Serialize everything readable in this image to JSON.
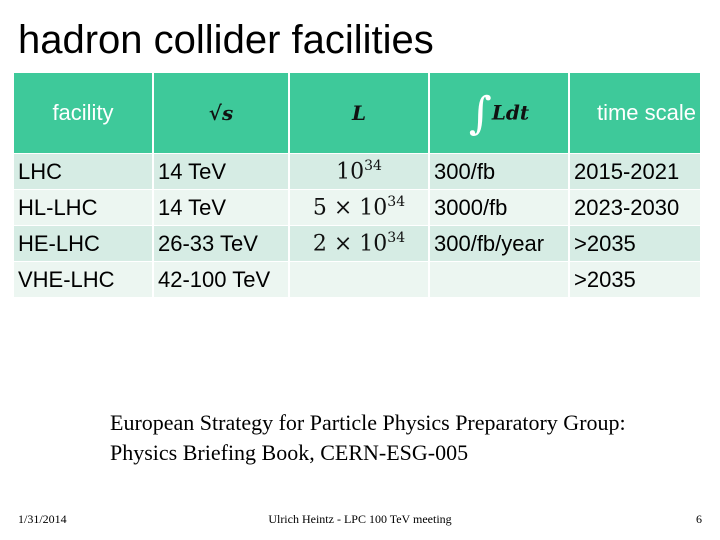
{
  "slide": {
    "title": "hadron collider facilities",
    "headers": {
      "facility": "facility",
      "sqrt_s": "√s",
      "luminosity": "L",
      "integrated_luminosity": "Ldt",
      "integral_sign": "∫",
      "time_scale": "time scale"
    },
    "rows": [
      {
        "facility": "LHC",
        "energy": "14 TeV",
        "lum_coeff": "",
        "lum_base": "10",
        "lum_exp": "34",
        "int_lum": "300/fb",
        "time": "2015-2021"
      },
      {
        "facility": "HL-LHC",
        "energy": "14 TeV",
        "lum_coeff": "5 × ",
        "lum_base": "10",
        "lum_exp": "34",
        "int_lum": "3000/fb",
        "time": "2023-2030"
      },
      {
        "facility": "HE-LHC",
        "energy": "26-33 TeV",
        "lum_coeff": "2 × ",
        "lum_base": "10",
        "lum_exp": "34",
        "int_lum": "300/fb/year",
        "time": ">2035"
      },
      {
        "facility": "VHE-LHC",
        "energy": "42-100 TeV",
        "lum_coeff": "",
        "lum_base": "",
        "lum_exp": "",
        "int_lum": "",
        "time": ">2035"
      }
    ],
    "reference": {
      "line1": "European Strategy for Particle Physics Preparatory Group:",
      "line2": "Physics Briefing Book, CERN-ESG-005"
    },
    "footer": {
      "date": "1/31/2014",
      "center": "Ulrich Heintz - LPC 100 TeV meeting",
      "page": "6"
    }
  }
}
